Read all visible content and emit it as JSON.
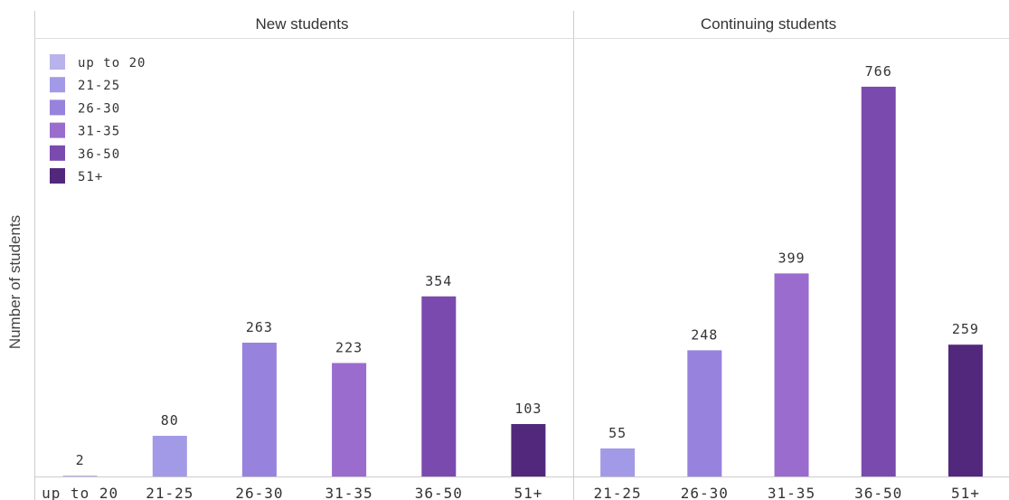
{
  "chart_data": {
    "type": "bar",
    "ylabel": "Number of students",
    "legend": {
      "position": "top-left",
      "entries": [
        "up to 20",
        "21-25",
        "26-30",
        "31-35",
        "36-50",
        "51+"
      ]
    },
    "colors": {
      "up to 20": "#b8b3ea",
      "21-25": "#a29ae6",
      "26-30": "#9782dd",
      "31-35": "#9a6ccd",
      "36-50": "#7b4aae",
      "51+": "#52287c"
    },
    "ylim": [
      0,
      860
    ],
    "panels": [
      {
        "title": "New students",
        "categories": [
          "up to 20",
          "21-25",
          "26-30",
          "31-35",
          "36-50",
          "51+"
        ],
        "values": [
          2,
          80,
          263,
          223,
          354,
          103
        ]
      },
      {
        "title": "Continuing students",
        "categories": [
          "21-25",
          "26-30",
          "31-35",
          "36-50",
          "51+"
        ],
        "values": [
          55,
          248,
          399,
          766,
          259
        ]
      }
    ]
  }
}
